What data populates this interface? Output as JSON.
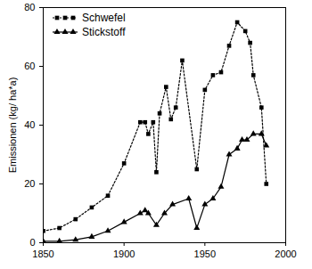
{
  "chart_data": {
    "type": "line",
    "y_label": "Emissionen (kg/ ha*a)",
    "xlim": [
      1850,
      2000
    ],
    "xticks": [
      1850,
      1900,
      1950,
      2000
    ],
    "ylim": [
      0,
      80
    ],
    "yticks": [
      0,
      20,
      40,
      60,
      80
    ],
    "grid": false,
    "legend": "top-left",
    "series": [
      {
        "name": "Schwefel",
        "color": "#000000",
        "marker": "square",
        "line_style": "dotted",
        "x": [
          1850,
          1860,
          1870,
          1880,
          1890,
          1900,
          1910,
          1913,
          1915,
          1918,
          1920,
          1922,
          1926,
          1929,
          1932,
          1936,
          1945,
          1950,
          1955,
          1960,
          1965,
          1970,
          1975,
          1978,
          1980,
          1985,
          1988
        ],
        "values": [
          4,
          5,
          8,
          12,
          16,
          27,
          41,
          41,
          37,
          41,
          24,
          44,
          53,
          42,
          46,
          62,
          25,
          52,
          57,
          58,
          67,
          75,
          72,
          68,
          57,
          46,
          20
        ]
      },
      {
        "name": "Stickstoff",
        "color": "#000000",
        "marker": "triangle",
        "line_style": "solid",
        "x": [
          1850,
          1860,
          1870,
          1880,
          1890,
          1900,
          1910,
          1913,
          1915,
          1920,
          1925,
          1930,
          1940,
          1945,
          1950,
          1955,
          1960,
          1965,
          1970,
          1973,
          1976,
          1980,
          1985,
          1988
        ],
        "values": [
          0.5,
          0.5,
          1,
          2,
          4,
          7,
          10,
          11,
          10,
          6,
          10,
          13,
          15,
          5,
          13,
          15,
          19,
          30,
          32,
          35,
          35,
          37,
          37,
          33
        ]
      }
    ]
  }
}
